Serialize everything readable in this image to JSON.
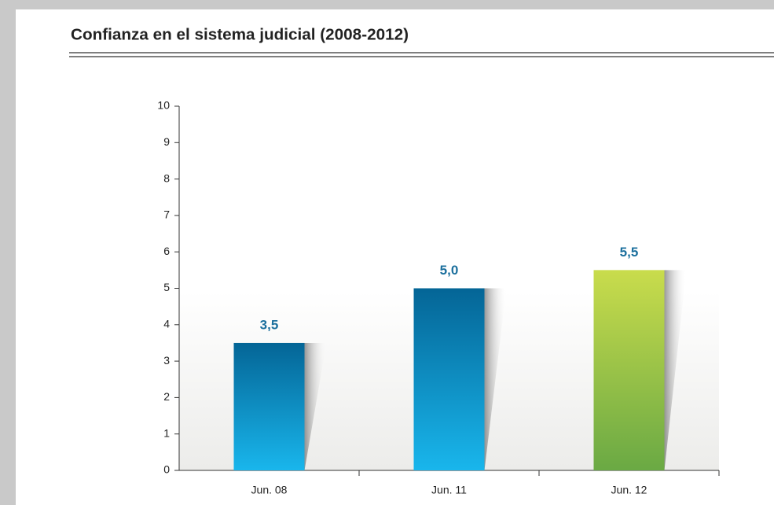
{
  "chart_data": {
    "type": "bar",
    "title": "Confianza en el sistema judicial (2008-2012)",
    "categories": [
      "Jun. 08",
      "Jun. 11",
      "Jun. 12"
    ],
    "values": [
      3.5,
      5.0,
      5.5
    ],
    "value_labels": [
      "3,5",
      "5,0",
      "5,5"
    ],
    "colors": [
      [
        "#046596",
        "#19b6ec"
      ],
      [
        "#046596",
        "#19b6ec"
      ],
      [
        "#c9dc4c",
        "#6aa944"
      ]
    ],
    "ylim": [
      0,
      10
    ],
    "yticks": [
      0,
      1,
      2,
      3,
      4,
      5,
      6,
      7,
      8,
      9,
      10
    ]
  }
}
